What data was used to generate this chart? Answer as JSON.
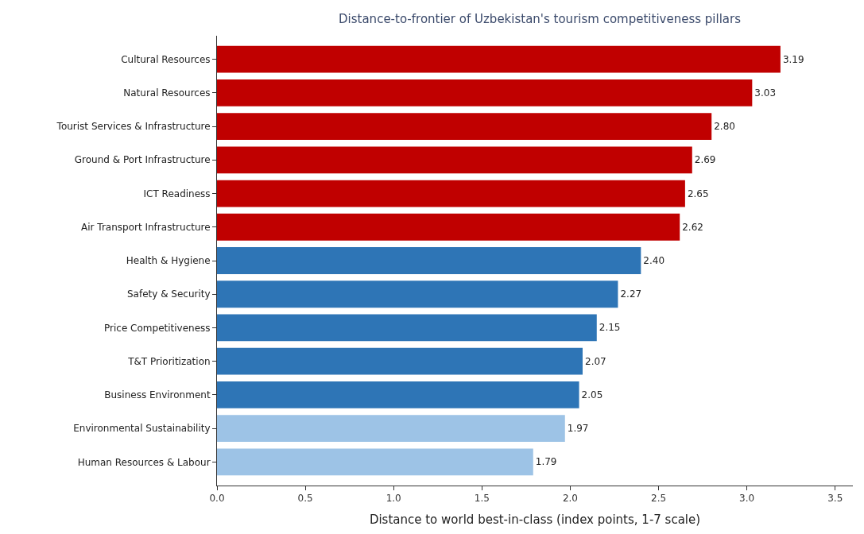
{
  "chart_data": {
    "type": "bar",
    "orientation": "horizontal",
    "title": "Distance-to-frontier of Uzbekistan's tourism competitiveness pillars",
    "xlabel": "Distance to world best-in-class (index points, 1-7 scale)",
    "categories": [
      "Cultural Resources",
      "Natural Resources",
      "Tourist Services & Infrastructure",
      "Ground & Port Infrastructure",
      "ICT Readiness",
      "Air Transport Infrastructure",
      "Health & Hygiene",
      "Safety & Security",
      "Price Competitiveness",
      "T&T Prioritization",
      "Business Environment",
      "Environmental Sustainability",
      "Human Resources & Labour"
    ],
    "values": [
      3.19,
      3.03,
      2.8,
      2.69,
      2.65,
      2.62,
      2.4,
      2.27,
      2.15,
      2.07,
      2.05,
      1.97,
      1.79
    ],
    "value_labels": [
      "3.19",
      "3.03",
      "2.80",
      "2.69",
      "2.65",
      "2.62",
      "2.40",
      "2.27",
      "2.15",
      "2.07",
      "2.05",
      "1.97",
      "1.79"
    ],
    "colors": [
      "#c00000",
      "#c00000",
      "#c00000",
      "#c00000",
      "#c00000",
      "#c00000",
      "#2e75b6",
      "#2e75b6",
      "#2e75b6",
      "#2e75b6",
      "#2e75b6",
      "#9dc3e6",
      "#9dc3e6"
    ],
    "xlim": [
      0,
      3.6
    ],
    "xticks": [
      {
        "value": 0,
        "label": "0.0"
      },
      {
        "value": 0.5,
        "label": "0.5"
      },
      {
        "value": 1,
        "label": "1.0"
      },
      {
        "value": 1.5,
        "label": "1.5"
      },
      {
        "value": 2,
        "label": "2.0"
      },
      {
        "value": 2.5,
        "label": "2.5"
      },
      {
        "value": 3,
        "label": "3.0"
      },
      {
        "value": 3.5,
        "label": "3.5"
      }
    ],
    "legend": false
  }
}
